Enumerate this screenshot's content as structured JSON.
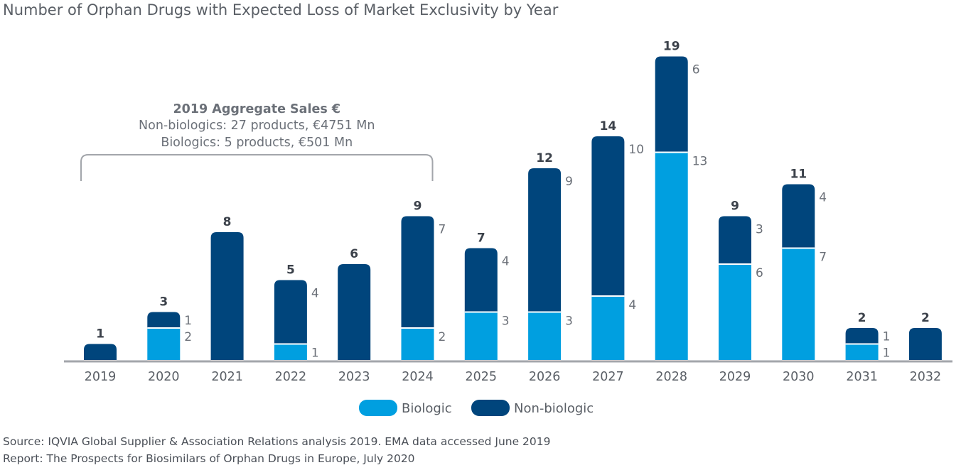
{
  "chart_data": {
    "type": "bar",
    "stacked": true,
    "title": "Number of Orphan Drugs with Expected Loss of Market Exclusivity by Year",
    "xlabel": "",
    "ylabel": "",
    "ylim": [
      0,
      19
    ],
    "categories": [
      "2019",
      "2020",
      "2021",
      "2022",
      "2023",
      "2024",
      "2025",
      "2026",
      "2027",
      "2028",
      "2029",
      "2030",
      "2031",
      "2032"
    ],
    "totals": [
      1,
      3,
      8,
      5,
      6,
      9,
      7,
      12,
      14,
      19,
      9,
      11,
      2,
      2
    ],
    "series": [
      {
        "name": "Biologic",
        "color": "#009fe0",
        "values": [
          0,
          2,
          0,
          1,
          0,
          2,
          3,
          3,
          4,
          13,
          6,
          7,
          1,
          0
        ]
      },
      {
        "name": "Non-biologic",
        "color": "#00457c",
        "values": [
          1,
          1,
          8,
          4,
          6,
          7,
          4,
          9,
          10,
          6,
          3,
          4,
          1,
          2
        ]
      }
    ],
    "segment_labels_shown_for": [
      "2020",
      "2022",
      "2024",
      "2025",
      "2026",
      "2027",
      "2028",
      "2029",
      "2030",
      "2031"
    ],
    "annotation": {
      "title": "2019 Aggregate Sales €",
      "lines": [
        "Non-biologics: 27 products, €4751 Mn",
        "Biologics: 5 products, €501 Mn"
      ],
      "span": [
        "2019",
        "2024"
      ]
    },
    "legend": [
      "Biologic",
      "Non-biologic"
    ],
    "legend_position": "bottom-center",
    "grid": false
  },
  "footer": {
    "source": "Source: IQVIA Global Supplier & Association Relations analysis 2019. EMA data accessed June 2019",
    "report": "Report: The Prospects for Biosimilars of Orphan Drugs in Europe, July 2020"
  }
}
